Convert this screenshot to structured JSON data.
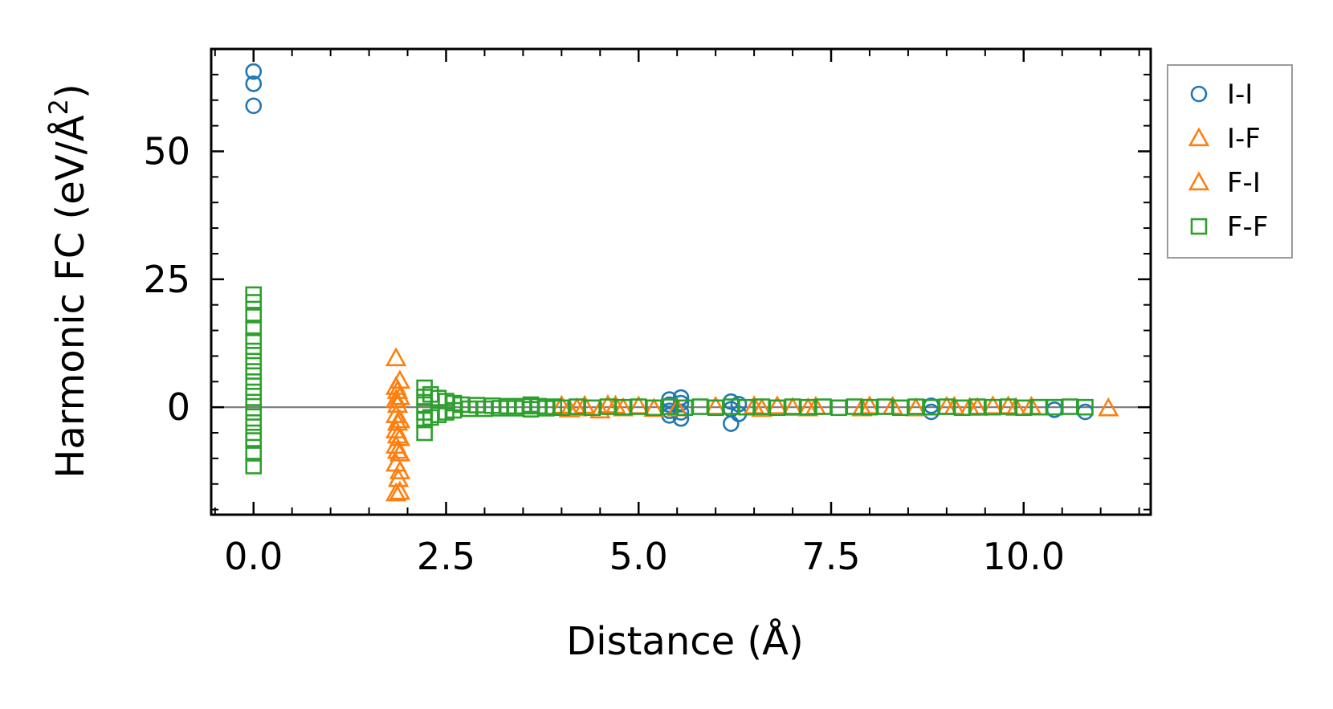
{
  "chart_data": {
    "type": "scatter",
    "xlabel": "Distance (Å)",
    "ylabel_main": "Harmonic FC (eV/Å",
    "ylabel_sup": "2",
    "ylabel_close": ")",
    "xlim": [
      -0.55,
      11.65
    ],
    "ylim": [
      -21,
      70
    ],
    "x_ticks": [
      0.0,
      2.5,
      5.0,
      7.5,
      10.0
    ],
    "x_tick_labels": [
      "0.0",
      "2.5",
      "5.0",
      "7.5",
      "10.0"
    ],
    "y_ticks": [
      0,
      25,
      50
    ],
    "y_tick_labels": [
      "0",
      "25",
      "50"
    ],
    "zero_line": true,
    "grid": false,
    "legend_position": "outside-right",
    "series": [
      {
        "name": "I-I",
        "marker": "circle",
        "color": "#1f77b4",
        "points": [
          [
            0.0,
            65.6
          ],
          [
            0.0,
            63.2
          ],
          [
            0.0,
            58.9
          ],
          [
            5.4,
            1.5
          ],
          [
            5.4,
            0.5
          ],
          [
            5.4,
            -0.7
          ],
          [
            5.4,
            -1.6
          ],
          [
            5.55,
            1.9
          ],
          [
            5.55,
            0.8
          ],
          [
            5.55,
            -1.0
          ],
          [
            5.55,
            -2.2
          ],
          [
            6.2,
            1.1
          ],
          [
            6.2,
            -0.4
          ],
          [
            6.2,
            -3.2
          ],
          [
            6.3,
            0.6
          ],
          [
            6.3,
            -1.3
          ],
          [
            8.8,
            -0.9
          ],
          [
            8.8,
            0.3
          ],
          [
            10.4,
            -0.5
          ],
          [
            10.8,
            -0.9
          ]
        ]
      },
      {
        "name": "I-F",
        "marker": "triangle",
        "color": "#ff7f0e",
        "points": [
          [
            1.85,
            9.6
          ],
          [
            1.85,
            4.0
          ],
          [
            1.85,
            1.5
          ],
          [
            1.85,
            -1.5
          ],
          [
            1.85,
            -4.5
          ],
          [
            1.85,
            -7.5
          ],
          [
            1.85,
            -11.0
          ],
          [
            1.85,
            -16.8
          ],
          [
            1.9,
            5.2
          ],
          [
            1.9,
            2.0
          ],
          [
            1.9,
            -2.5
          ],
          [
            1.9,
            -6.0
          ],
          [
            1.9,
            -9.0
          ],
          [
            1.9,
            -12.5
          ],
          [
            1.9,
            -16.5
          ],
          [
            4.0,
            0.3
          ],
          [
            4.1,
            -0.4
          ],
          [
            4.3,
            0.3
          ],
          [
            4.5,
            -0.6
          ],
          [
            4.6,
            0.4
          ],
          [
            4.8,
            -0.2
          ],
          [
            5.0,
            0.2
          ],
          [
            5.5,
            -0.2
          ],
          [
            6.0,
            0.1
          ],
          [
            6.6,
            -0.3
          ],
          [
            6.8,
            0.2
          ],
          [
            7.0,
            -0.1
          ],
          [
            7.3,
            0.1
          ],
          [
            7.9,
            -0.2
          ],
          [
            8.3,
            0.1
          ],
          [
            8.6,
            -0.2
          ],
          [
            9.0,
            0.1
          ],
          [
            9.3,
            -0.1
          ],
          [
            9.6,
            0.2
          ],
          [
            9.9,
            -0.1
          ]
        ]
      },
      {
        "name": "F-I",
        "marker": "triangle",
        "color": "#ff7f0e",
        "points": [
          [
            1.87,
            3.2
          ],
          [
            1.87,
            0.5
          ],
          [
            1.87,
            -3.0
          ],
          [
            1.87,
            -5.5
          ],
          [
            1.87,
            -8.5
          ],
          [
            1.88,
            -14.0
          ],
          [
            4.2,
            -0.2
          ],
          [
            4.7,
            0.3
          ],
          [
            5.2,
            -0.3
          ],
          [
            6.5,
            0.2
          ],
          [
            7.2,
            -0.2
          ],
          [
            8.0,
            0.2
          ],
          [
            9.1,
            0.1
          ],
          [
            9.4,
            -0.1
          ],
          [
            9.8,
            0.2
          ],
          [
            10.1,
            0.1
          ],
          [
            11.1,
            -0.2
          ]
        ]
      },
      {
        "name": "F-F",
        "marker": "square",
        "color": "#2ca02c",
        "points": [
          [
            0.0,
            22.0
          ],
          [
            0.0,
            20.5
          ],
          [
            0.0,
            18.0
          ],
          [
            0.0,
            15.5
          ],
          [
            0.0,
            13.0
          ],
          [
            0.0,
            11.0
          ],
          [
            0.0,
            9.0
          ],
          [
            0.0,
            7.0
          ],
          [
            0.0,
            5.0
          ],
          [
            0.0,
            3.0
          ],
          [
            0.0,
            1.0
          ],
          [
            0.0,
            -1.0
          ],
          [
            0.0,
            -3.0
          ],
          [
            0.0,
            -5.0
          ],
          [
            0.0,
            -6.5
          ],
          [
            0.0,
            -9.0
          ],
          [
            0.0,
            -11.5
          ],
          [
            2.22,
            3.8
          ],
          [
            2.22,
            2.0
          ],
          [
            2.22,
            0.5
          ],
          [
            2.22,
            -1.0
          ],
          [
            2.22,
            -2.5
          ],
          [
            2.22,
            -5.0
          ],
          [
            2.3,
            2.5
          ],
          [
            2.3,
            -2.0
          ],
          [
            2.4,
            1.8
          ],
          [
            2.4,
            -1.5
          ],
          [
            2.5,
            1.2
          ],
          [
            2.5,
            -1.0
          ],
          [
            2.6,
            0.8
          ],
          [
            2.6,
            -0.6
          ],
          [
            2.7,
            0.5
          ],
          [
            2.8,
            -0.3
          ],
          [
            2.9,
            0.4
          ],
          [
            3.0,
            -0.3
          ],
          [
            3.1,
            0.3
          ],
          [
            3.2,
            -0.2
          ],
          [
            3.3,
            0.2
          ],
          [
            3.4,
            -0.2
          ],
          [
            3.5,
            0.2
          ],
          [
            3.6,
            0.5
          ],
          [
            3.6,
            -0.4
          ],
          [
            3.7,
            0.2
          ],
          [
            3.8,
            -0.2
          ],
          [
            3.9,
            0.1
          ],
          [
            4.0,
            -0.1
          ],
          [
            4.2,
            0.1
          ],
          [
            4.4,
            -0.1
          ],
          [
            4.6,
            0.1
          ],
          [
            4.8,
            0.0
          ],
          [
            5.0,
            0.1
          ],
          [
            5.2,
            -0.1
          ],
          [
            5.4,
            0.1
          ],
          [
            5.6,
            -0.1
          ],
          [
            5.8,
            0.1
          ],
          [
            6.0,
            -0.1
          ],
          [
            6.2,
            0.1
          ],
          [
            6.4,
            0.0
          ],
          [
            6.6,
            0.1
          ],
          [
            6.8,
            -0.1
          ],
          [
            7.0,
            0.1
          ],
          [
            7.2,
            0.0
          ],
          [
            7.4,
            0.1
          ],
          [
            7.6,
            -0.1
          ],
          [
            7.8,
            0.1
          ],
          [
            8.0,
            0.0
          ],
          [
            8.2,
            0.1
          ],
          [
            8.4,
            -0.1
          ],
          [
            8.6,
            0.1
          ],
          [
            8.8,
            0.0
          ],
          [
            9.0,
            0.1
          ],
          [
            9.2,
            -0.1
          ],
          [
            9.4,
            0.1
          ],
          [
            9.6,
            0.0
          ],
          [
            9.8,
            0.1
          ],
          [
            10.0,
            -0.1
          ],
          [
            10.2,
            0.0
          ],
          [
            10.4,
            0.0
          ],
          [
            10.6,
            0.1
          ],
          [
            10.8,
            0.0
          ]
        ]
      }
    ]
  }
}
